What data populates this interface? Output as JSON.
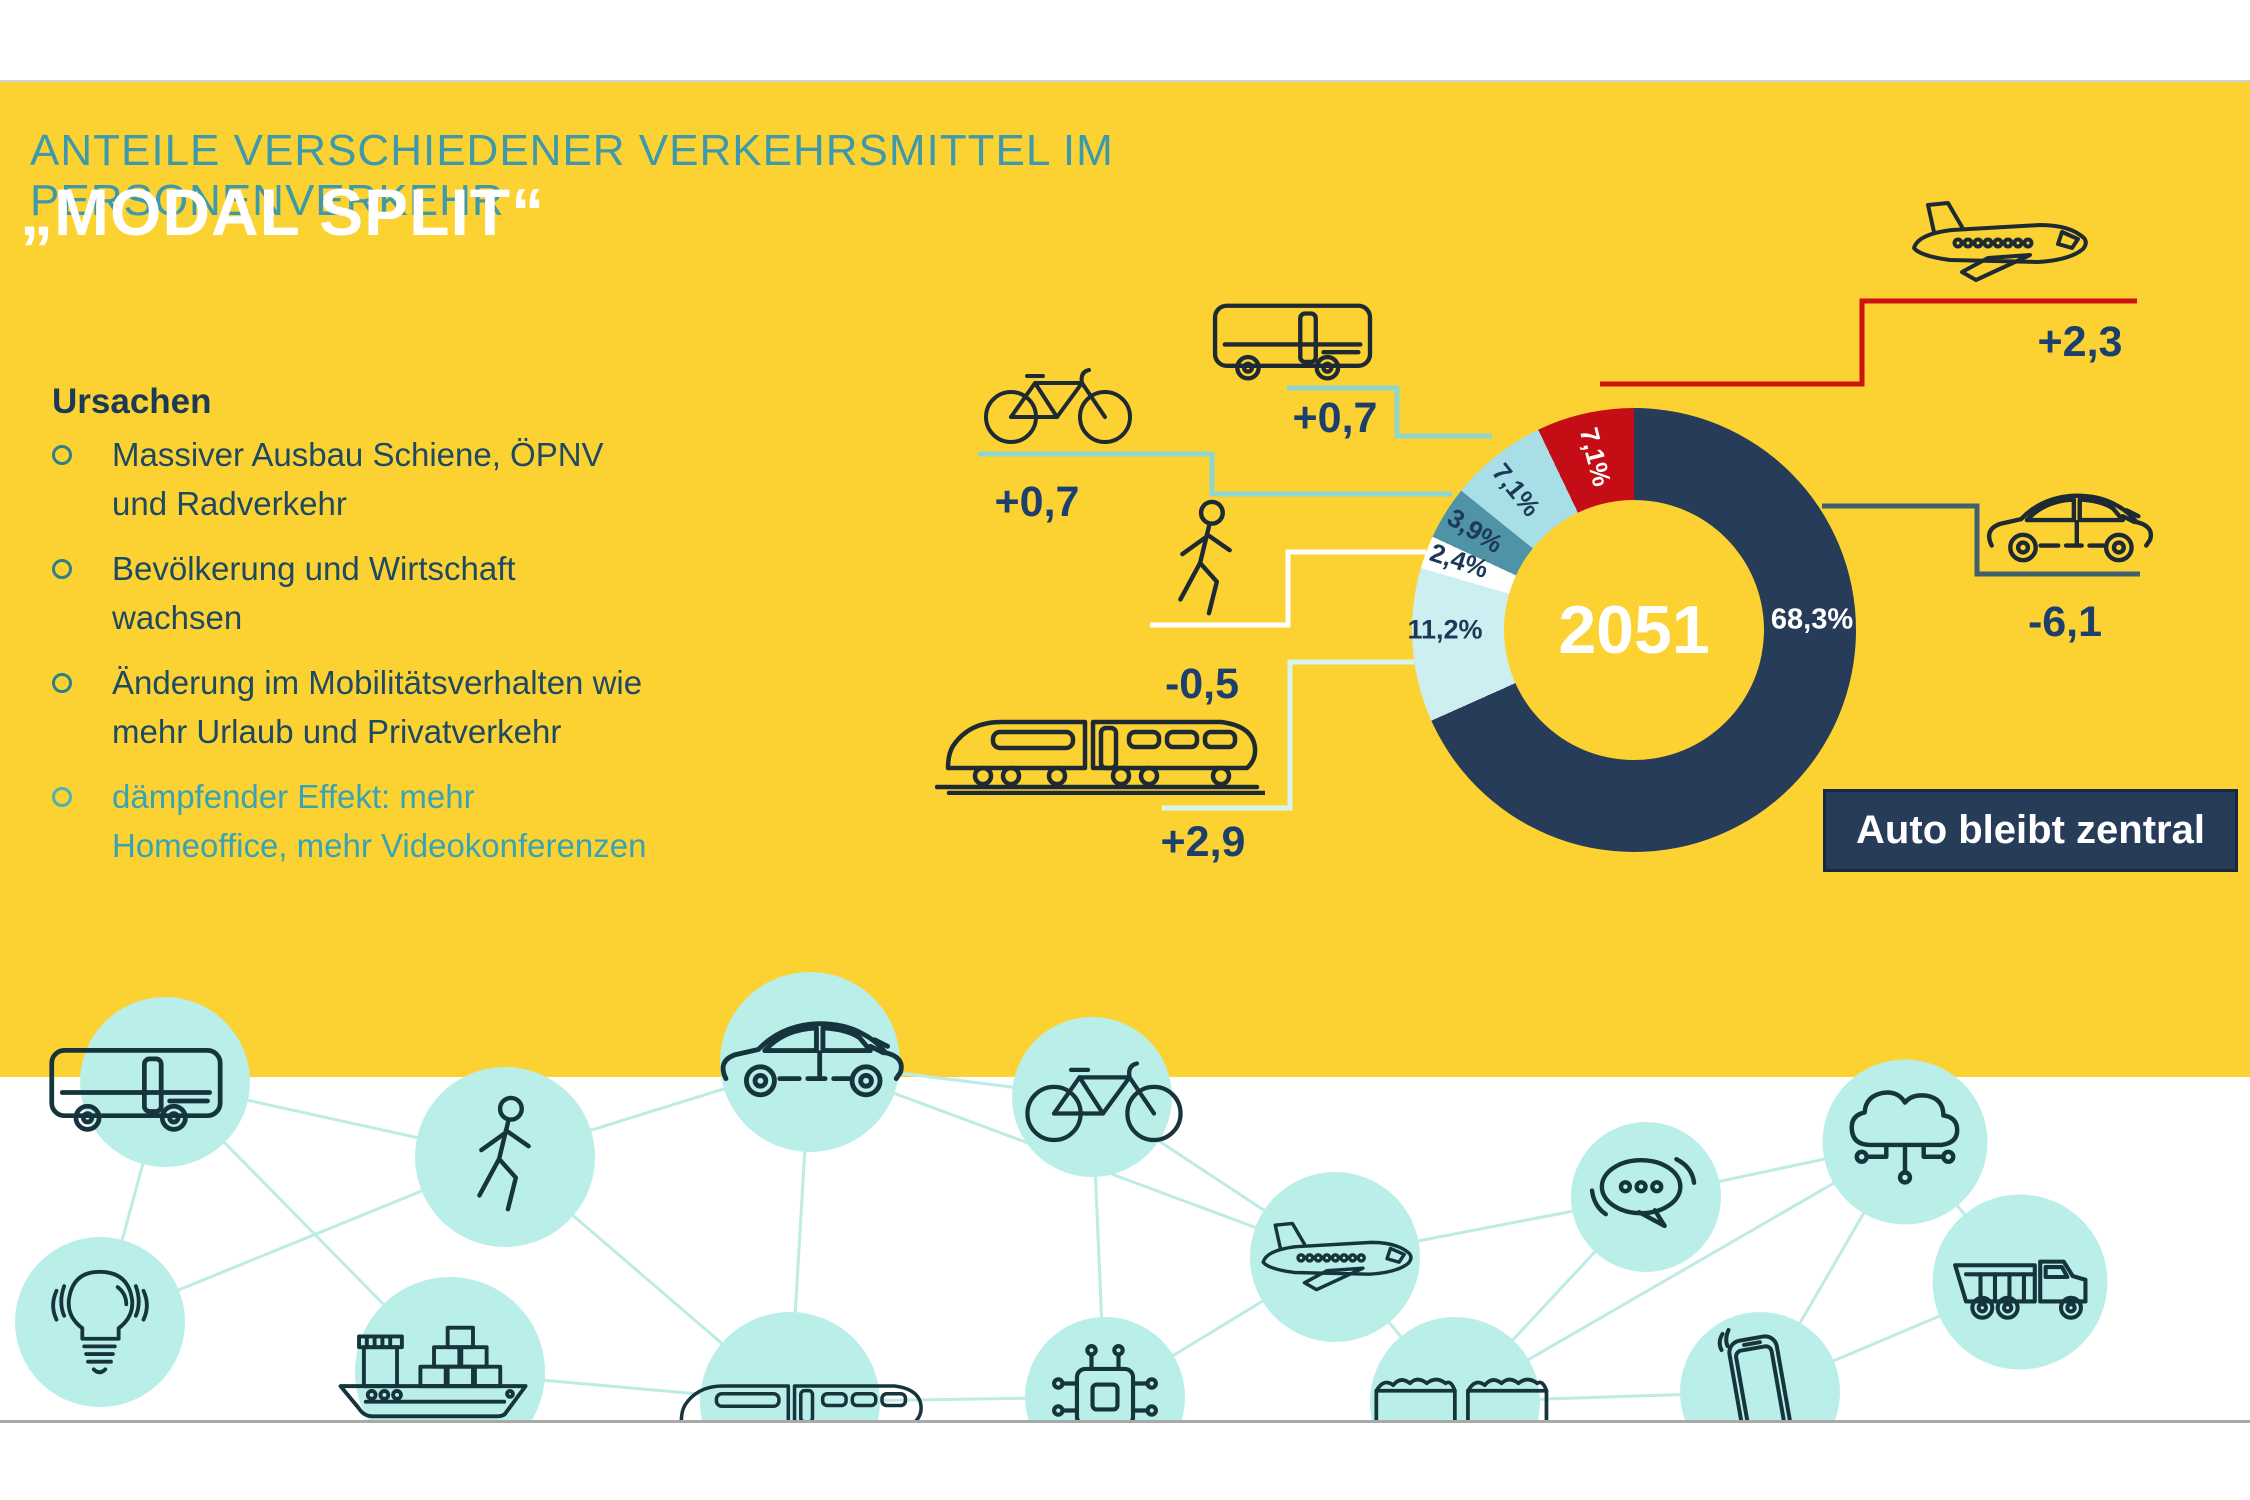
{
  "header": {
    "title": "ANTEILE VERSCHIEDENER VERKEHRSMITTEL IM PERSONENVERKEHR",
    "subtitle": "„MODAL SPLIT“"
  },
  "causes": {
    "heading": "Ursachen",
    "items": [
      {
        "text": "Massiver Ausbau Schiene, ÖPNV und Radverkehr",
        "highlight": false
      },
      {
        "text": "Bevölkerung und Wirtschaft wachsen",
        "highlight": false
      },
      {
        "text": "Änderung im Mobilitätsverhalten wie mehr Urlaub und Privatverkehr",
        "highlight": false
      },
      {
        "text": "dämpfender Effekt: mehr Homeoffice, mehr Videokonferenzen",
        "highlight": true
      }
    ]
  },
  "chart_data": {
    "type": "pie",
    "variant": "donut",
    "center_label": "2051",
    "unit": "%",
    "legend_position": "none",
    "slices": [
      {
        "mode": "car",
        "value": 68.3,
        "display": "68,3%",
        "color": "#263C59",
        "change": "-6,1"
      },
      {
        "mode": "rail",
        "value": 11.2,
        "display": "11,2%",
        "color": "#CDEFF2",
        "change": "+2,9"
      },
      {
        "mode": "walking",
        "value": 2.4,
        "display": "2,4%",
        "color": "#FFFFFF",
        "change": "-0,5"
      },
      {
        "mode": "bike",
        "value": 3.9,
        "display": "3,9%",
        "color": "#4E93A6",
        "change": "+0,7"
      },
      {
        "mode": "bus",
        "value": 7.1,
        "display": "7,1%",
        "color": "#A8DFE6",
        "change": "+0,7"
      },
      {
        "mode": "plane",
        "value": 7.1,
        "display": "7,1%",
        "color": "#C40D15",
        "change": "+2,3"
      }
    ]
  },
  "modes": [
    {
      "icon": "bike-icon",
      "change": "+0,7"
    },
    {
      "icon": "bus-icon",
      "change": "+0,7"
    },
    {
      "icon": "pedestrian-icon",
      "change": "-0,5"
    },
    {
      "icon": "train-icon",
      "change": "+2,9"
    },
    {
      "icon": "plane-icon",
      "change": "+2,3"
    },
    {
      "icon": "car-icon",
      "change": "-6,1"
    }
  ],
  "callout": {
    "label": "Auto bleibt zentral"
  },
  "colors": {
    "background_yellow": "#FCD232",
    "navy": "#263C59",
    "title_teal": "#3E9AAB",
    "highlight_teal": "#38A3B4",
    "red": "#C40D15",
    "circle_mint": "#B9EFE8"
  },
  "network": {
    "nodes": [
      "bus",
      "lightbulb",
      "pedestrian",
      "ship",
      "car",
      "train",
      "bike",
      "microchip",
      "plane",
      "chat",
      "freight-train",
      "cloud-network",
      "smartphone",
      "truck"
    ]
  }
}
